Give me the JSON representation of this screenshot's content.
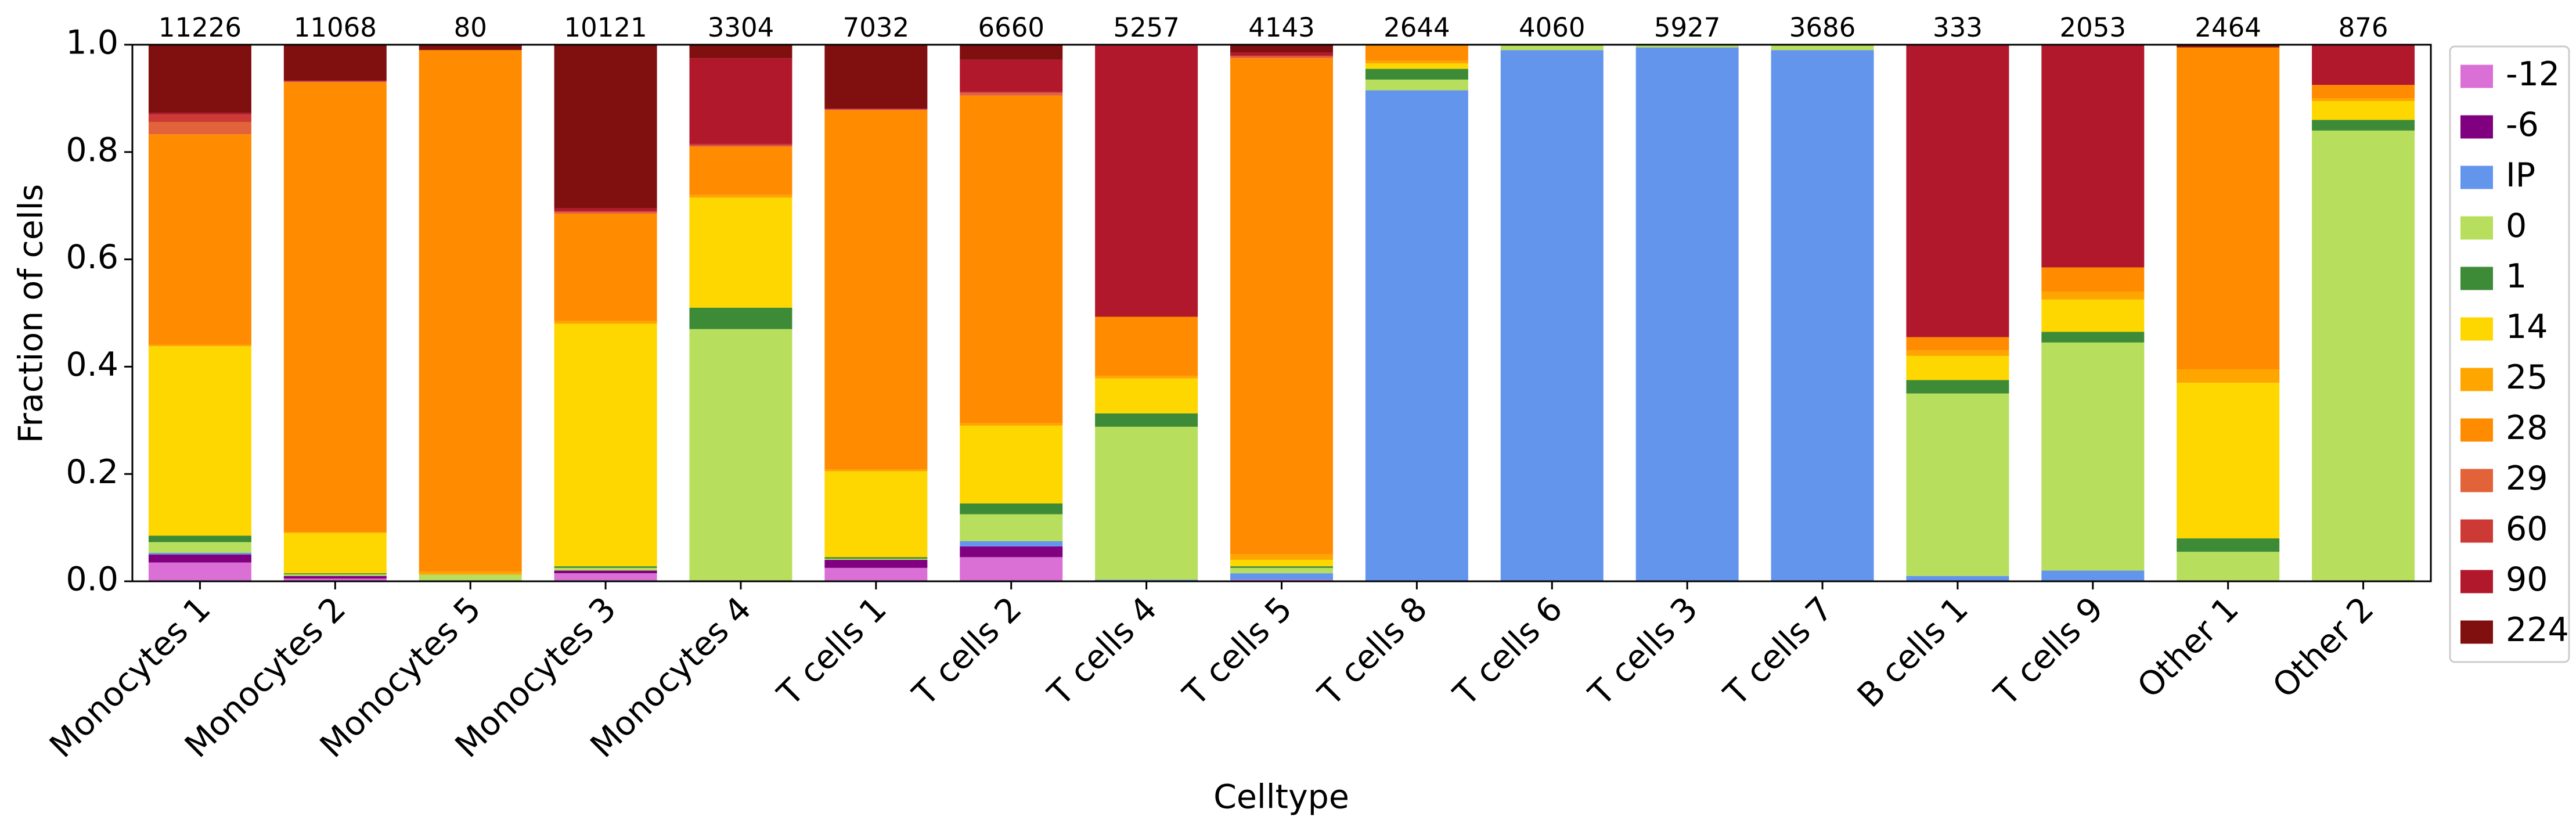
{
  "chart_data": {
    "type": "stacked_bar",
    "xlabel": "Celltype",
    "ylabel": "Fraction of cells",
    "categories": [
      "Monocytes 1",
      "Monocytes 2",
      "Monocytes 5",
      "Monocytes 3",
      "Monocytes 4",
      "T cells 1",
      "T cells 2",
      "T cells 4",
      "T cells 5",
      "T cells 8",
      "T cells 6",
      "T cells 3",
      "T cells 7",
      "B cells 1",
      "T cells 9",
      "Other 1",
      "Other 2"
    ],
    "annotations": [
      11226,
      11068,
      80,
      10121,
      3304,
      7032,
      6660,
      5257,
      4143,
      2644,
      4060,
      5927,
      3686,
      333,
      2053,
      2464,
      876
    ],
    "ylim": [
      0,
      1
    ],
    "yticks": [
      {
        "value": 0,
        "label": "0.0"
      },
      {
        "value": 0.2,
        "label": "0.2"
      },
      {
        "value": 0.4,
        "label": "0.4"
      },
      {
        "value": 0.6,
        "label": "0.6"
      },
      {
        "value": 0.8,
        "label": "0.8"
      },
      {
        "value": 1,
        "label": "1.0"
      }
    ],
    "legend": "outside right",
    "series": [
      {
        "name": "-12",
        "color": "#da70d6",
        "values": [
          0.035,
          0.005,
          0,
          0.015,
          0,
          0.025,
          0.045,
          0,
          0.003,
          0,
          0,
          0,
          0,
          0,
          0,
          0,
          0
        ]
      },
      {
        "name": "-6",
        "color": "#800080",
        "values": [
          0.015,
          0.005,
          0,
          0.005,
          0,
          0.015,
          0.02,
          0,
          0,
          0,
          0,
          0,
          0,
          0,
          0,
          0,
          0
        ]
      },
      {
        "name": "IP",
        "color": "#6495ed",
        "values": [
          0.003,
          0,
          0,
          0,
          0,
          0,
          0.01,
          0.003,
          0.012,
          0.915,
          0.99,
          0.995,
          0.99,
          0.01,
          0.02,
          0,
          0
        ]
      },
      {
        "name": "0",
        "color": "#b8de5e",
        "values": [
          0.02,
          0.003,
          0.0125,
          0.005,
          0.47,
          0.002,
          0.05,
          0.285,
          0.01,
          0.02,
          0.01,
          0.005,
          0.01,
          0.34,
          0.425,
          0.055,
          0.84
        ]
      },
      {
        "name": "1",
        "color": "#3d8b37",
        "values": [
          0.012,
          0.002,
          0,
          0.003,
          0.04,
          0.003,
          0.02,
          0.025,
          0.003,
          0.02,
          0,
          0,
          0,
          0.025,
          0.02,
          0.025,
          0.02
        ]
      },
      {
        "name": "14",
        "color": "#ffd700",
        "values": [
          0.353,
          0.075,
          0,
          0.452,
          0.205,
          0.16,
          0.145,
          0.065,
          0.012,
          0.01,
          0,
          0,
          0,
          0.045,
          0.06,
          0.29,
          0.035
        ]
      },
      {
        "name": "25",
        "color": "#ffa500",
        "values": [
          0.003,
          0.002,
          0.005,
          0.005,
          0.005,
          0.003,
          0.005,
          0.005,
          0.01,
          0.005,
          0,
          0,
          0,
          0.01,
          0.015,
          0.025,
          0.005
        ]
      },
      {
        "name": "28",
        "color": "#ff8c00",
        "values": [
          0.392,
          0.838,
          0.9725,
          0.2,
          0.09,
          0.67,
          0.61,
          0.11,
          0.925,
          0.03,
          0,
          0,
          0,
          0.025,
          0.045,
          0.6,
          0.025
        ]
      },
      {
        "name": "29",
        "color": "#e2623a",
        "values": [
          0.023,
          0.001,
          0,
          0.003,
          0.002,
          0.001,
          0.005,
          0,
          0.003,
          0,
          0,
          0,
          0,
          0,
          0,
          0,
          0
        ]
      },
      {
        "name": "60",
        "color": "#cd3a35",
        "values": [
          0.014,
          0.001,
          0,
          0.002,
          0.003,
          0.001,
          0.002,
          0,
          0.002,
          0,
          0,
          0,
          0,
          0,
          0,
          0,
          0
        ]
      },
      {
        "name": "90",
        "color": "#b2182b",
        "values": [
          0.003,
          0.001,
          0,
          0.005,
          0.16,
          0.001,
          0.06,
          0.505,
          0.005,
          0,
          0,
          0,
          0,
          0.545,
          0.415,
          0,
          0.075
        ]
      },
      {
        "name": "224",
        "color": "#800f10",
        "values": [
          0.127,
          0.067,
          0.01,
          0.305,
          0.025,
          0.119,
          0.028,
          0.002,
          0.015,
          0,
          0,
          0,
          0,
          0,
          0,
          0.005,
          0
        ]
      }
    ]
  }
}
